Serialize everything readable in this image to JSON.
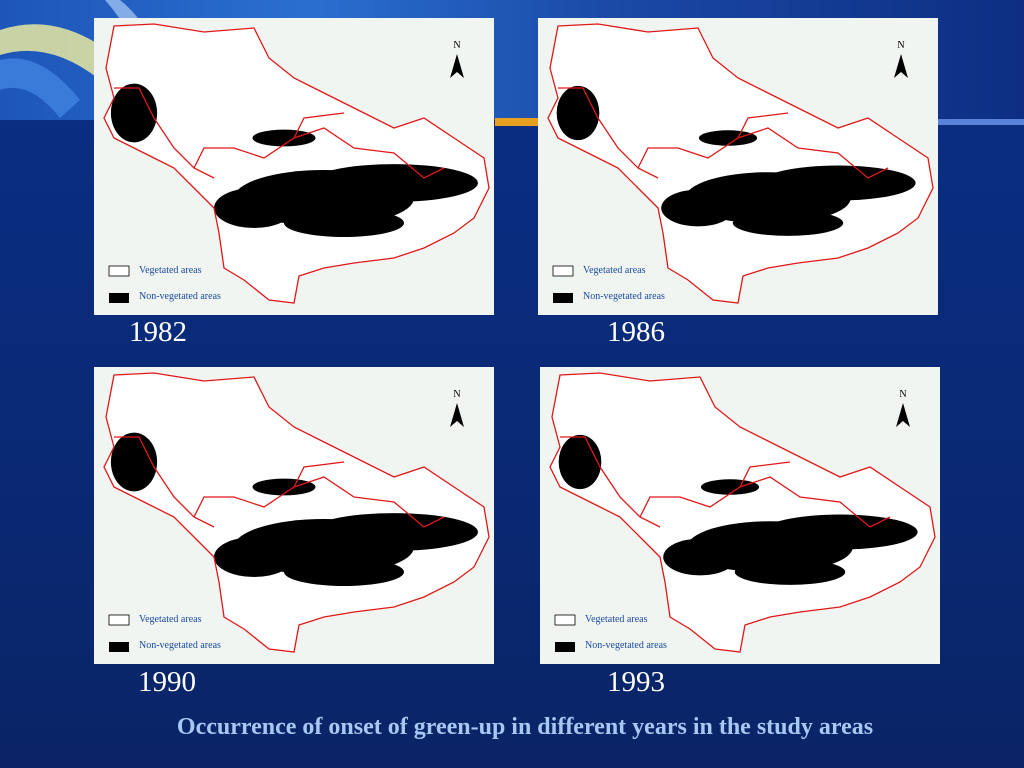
{
  "panels": [
    {
      "year": "1982",
      "north": "N",
      "legend": [
        "Vegetated areas",
        "Non-vegetated areas"
      ]
    },
    {
      "year": "1986",
      "north": "N",
      "legend": [
        "Vegetated areas",
        "Non-vegetated areas"
      ]
    },
    {
      "year": "1990",
      "north": "N",
      "legend": [
        "Vegetated areas",
        "Non-vegetated areas"
      ]
    },
    {
      "year": "1993",
      "north": "N",
      "legend": [
        "Vegetated areas",
        "Non-vegetated areas"
      ]
    }
  ],
  "caption": "Occurrence of onset of green-up in different years in the study areas"
}
